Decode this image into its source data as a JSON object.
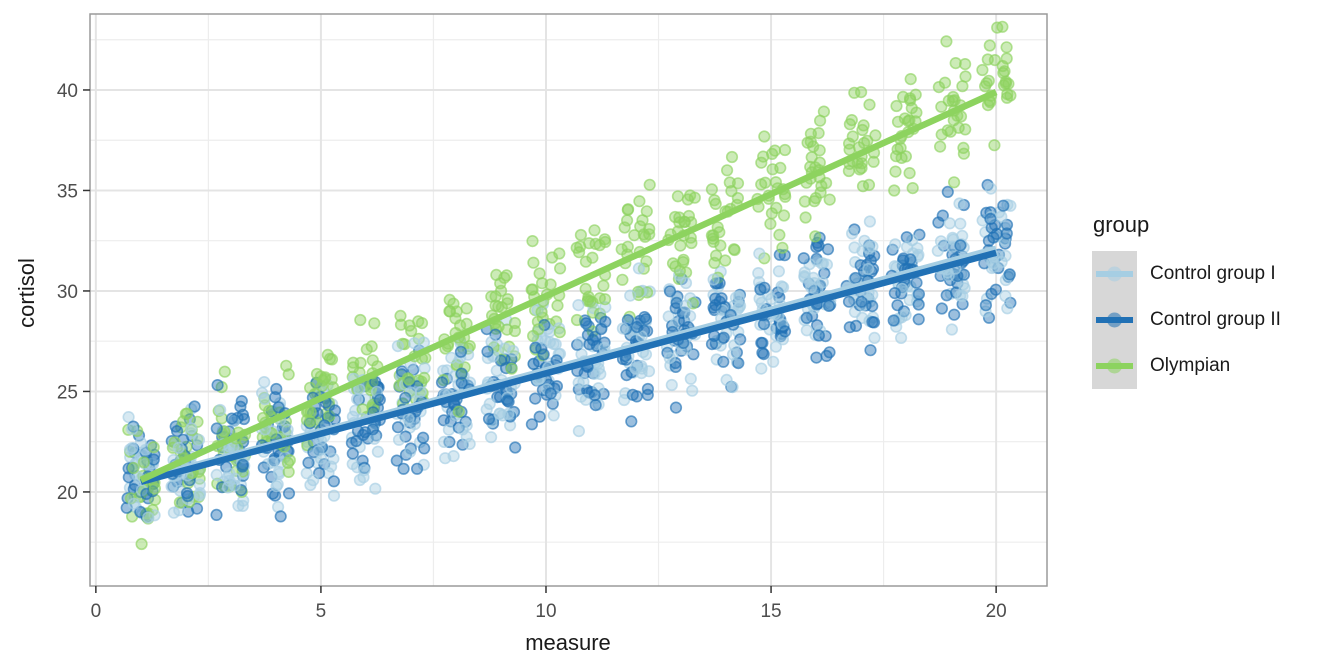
{
  "chart_data": {
    "type": "scatter",
    "title": "",
    "xlabel": "measure",
    "ylabel": "cortisol",
    "legend_title": "group",
    "legend_position": "right",
    "grid": true,
    "x_ticks": [
      0,
      5,
      10,
      15,
      20
    ],
    "y_ticks": [
      20,
      25,
      30,
      35,
      40
    ],
    "x_minor_ticks": [
      2.5,
      7.5,
      12.5,
      17.5
    ],
    "y_minor_ticks": [
      17.5,
      22.5,
      27.5,
      32.5,
      37.5,
      42.5
    ],
    "xlim": [
      -0.13,
      21.13
    ],
    "ylim": [
      15.32,
      43.78
    ],
    "x_values": [
      1,
      2,
      3,
      4,
      5,
      6,
      7,
      8,
      9,
      10,
      11,
      12,
      13,
      14,
      15,
      16,
      17,
      18,
      19,
      20
    ],
    "points_per_group_per_x": 26,
    "point_alpha": 0.45,
    "point_radius": 5.3,
    "jitter_width": 0.32,
    "vertical_sd": 1.45,
    "series": [
      {
        "name": "Control group I",
        "color": "#a6cee3",
        "trend_line": {
          "x": [
            1,
            20
          ],
          "y": [
            20.6,
            32.1
          ]
        }
      },
      {
        "name": "Control group II",
        "color": "#2171b5",
        "trend_line": {
          "x": [
            1,
            20
          ],
          "y": [
            20.5,
            31.9
          ]
        }
      },
      {
        "name": "Olympian",
        "color": "#8dd35f",
        "trend_line": {
          "x": [
            1,
            20
          ],
          "y": [
            20.6,
            39.9
          ]
        }
      }
    ],
    "colors": {
      "grid_major": "#e4e4e4",
      "grid_minor": "#ededed",
      "panel_border": "#9a9a9a",
      "tick": "#333333",
      "tick_label": "#4d4d4d",
      "axis_title": "#1a1a1a",
      "legend_key_bg": "#d7d7d7"
    }
  }
}
